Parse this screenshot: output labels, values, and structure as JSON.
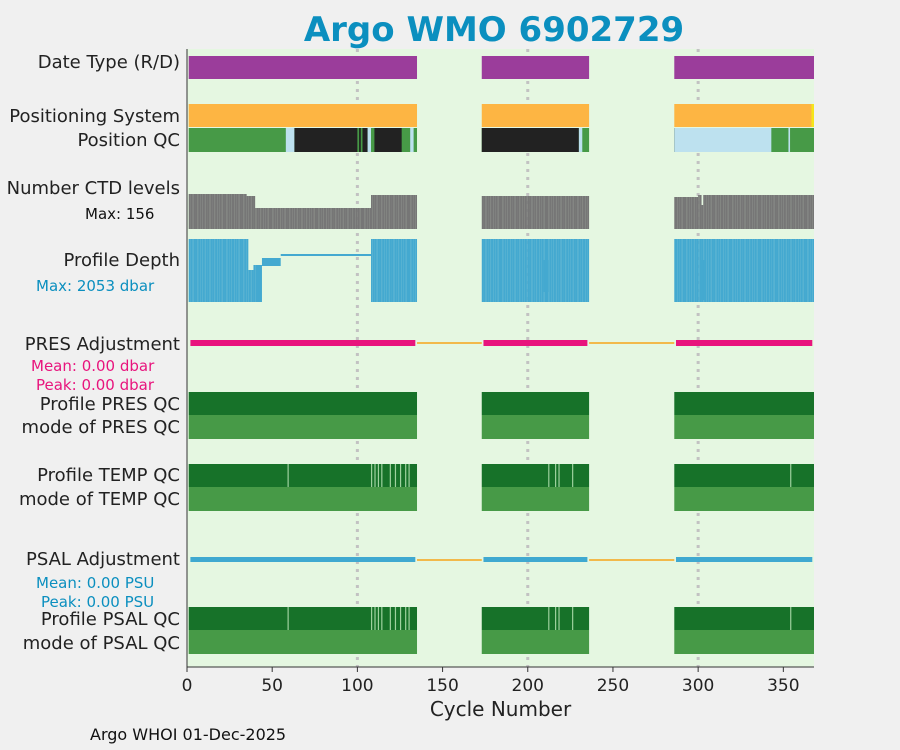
{
  "chart_data": {
    "type": "bar",
    "title": "Argo WMO 6902729",
    "xlabel": "Cycle Number",
    "xlim": [
      0,
      368
    ],
    "xticks": [
      0,
      50,
      100,
      150,
      200,
      250,
      300,
      350
    ],
    "footer": "Argo WHOI 01-Dec-2025",
    "cycle_segments": [
      [
        1,
        135
      ],
      [
        173,
        236
      ],
      [
        286,
        368
      ]
    ],
    "gap_connectors": [
      [
        135,
        173
      ],
      [
        236,
        286
      ]
    ],
    "vertical_dotted_lines": [
      100,
      200,
      300
    ],
    "colors": {
      "background": "#e5f7e1",
      "data_type": "#9b3d9b",
      "positioning": "#fdb543",
      "qc_good": "#479a47",
      "qc_dark": "#177229",
      "qc_black": "#222222",
      "qc_lightblue": "#bde1ef",
      "ctd": "#767676",
      "profile_depth": "#44a9d0",
      "pres_adj": "#e8147d",
      "psal_adj": "#3fa9d0",
      "gap_line": "#f2b94b",
      "title": "#0b8fbf"
    },
    "rows": {
      "data_type": {
        "label": "Date Type (R/D)"
      },
      "positioning_system": {
        "label": "Positioning System"
      },
      "position_qc": {
        "label": "Position QC",
        "dark_ranges": [
          [
            63,
            100
          ],
          [
            101,
            102
          ],
          [
            103,
            106
          ],
          [
            110,
            126
          ]
        ],
        "lightblue_ranges": [
          [
            58,
            63
          ],
          [
            106,
            108
          ],
          [
            131,
            133
          ],
          [
            286,
            343
          ]
        ],
        "mediumgreen_ranges": [
          [
            100,
            101
          ],
          [
            108,
            109
          ]
        ]
      },
      "number_ctd_levels": {
        "label": "Number CTD levels",
        "max_text": "Max: 156",
        "max": 156
      },
      "profile_depth": {
        "label": "Profile Depth",
        "max_text": "Max: 2053 dbar",
        "max": 2053
      },
      "pres_adjustment": {
        "label": "PRES Adjustment",
        "mean_text": "Mean: 0.00 dbar",
        "peak_text": "Peak: 0.00 dbar"
      },
      "profile_pres_qc": {
        "label": "Profile PRES QC"
      },
      "mode_pres_qc": {
        "label": "mode of PRES QC"
      },
      "profile_temp_qc": {
        "label": "Profile TEMP QC",
        "breaks": [
          59,
          108,
          110,
          112,
          114,
          119,
          122,
          125,
          128,
          130,
          212,
          216,
          218,
          226,
          354
        ]
      },
      "mode_temp_qc": {
        "label": "mode of TEMP QC"
      },
      "psal_adjustment": {
        "label": "PSAL Adjustment",
        "mean_text": "Mean: 0.00 PSU",
        "peak_text": "Peak: 0.00 PSU"
      },
      "profile_psal_qc": {
        "label": "Profile PSAL QC",
        "breaks": [
          59,
          108,
          110,
          112,
          114,
          119,
          122,
          125,
          128,
          130,
          212,
          216,
          218,
          226,
          354
        ]
      },
      "mode_psal_qc": {
        "label": "mode of PSAL QC"
      }
    }
  }
}
